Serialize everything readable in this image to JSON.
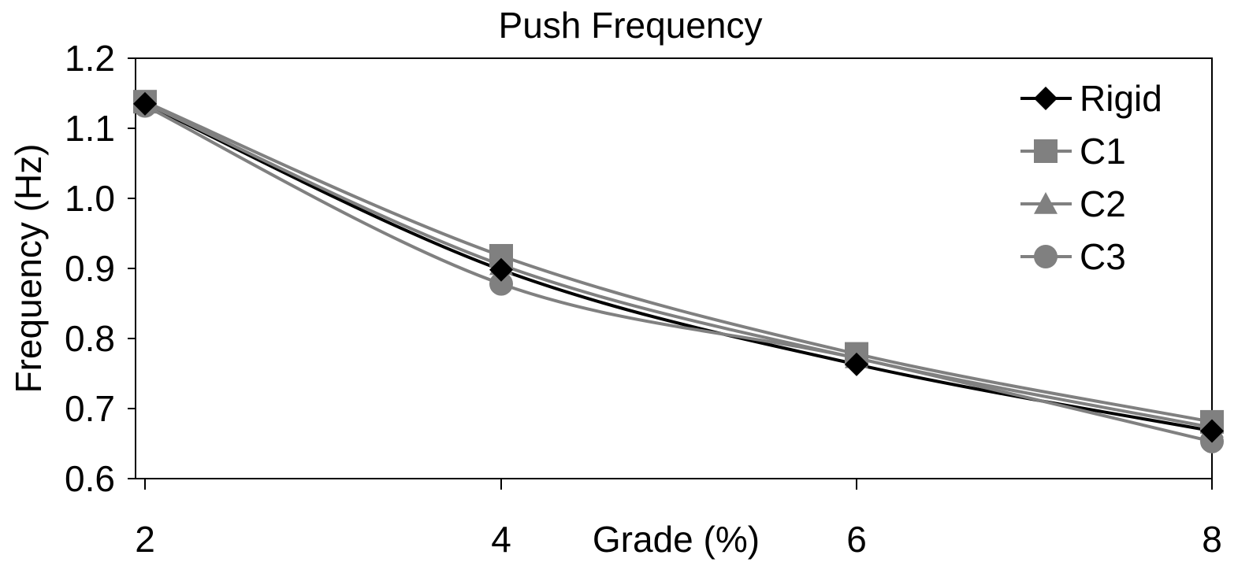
{
  "chart_data": {
    "type": "line",
    "title": "Push Frequency",
    "xlabel": "Grade (%)",
    "ylabel": "Frequency (Hz)",
    "x": [
      2,
      4,
      6,
      8
    ],
    "x_tick_labels": [
      "2",
      "4",
      "6",
      "8"
    ],
    "ylim": [
      0.6,
      1.2
    ],
    "y_tick_labels": [
      "0.6",
      "0.7",
      "0.8",
      "0.9",
      "1.0",
      "1.1",
      "1.2"
    ],
    "grid": false,
    "legend_position": "top-right",
    "series": [
      {
        "name": "Rigid",
        "marker": "diamond",
        "color": "#000000",
        "values": [
          1.135,
          0.898,
          0.763,
          0.668
        ]
      },
      {
        "name": "C1",
        "marker": "square",
        "color": "#808080",
        "values": [
          1.138,
          0.918,
          0.778,
          0.681
        ]
      },
      {
        "name": "C2",
        "marker": "triangle",
        "color": "#808080",
        "values": [
          1.136,
          0.905,
          0.772,
          0.673
        ]
      },
      {
        "name": "C3",
        "marker": "circle",
        "color": "#808080",
        "values": [
          1.132,
          0.878,
          0.772,
          0.653
        ]
      }
    ]
  }
}
